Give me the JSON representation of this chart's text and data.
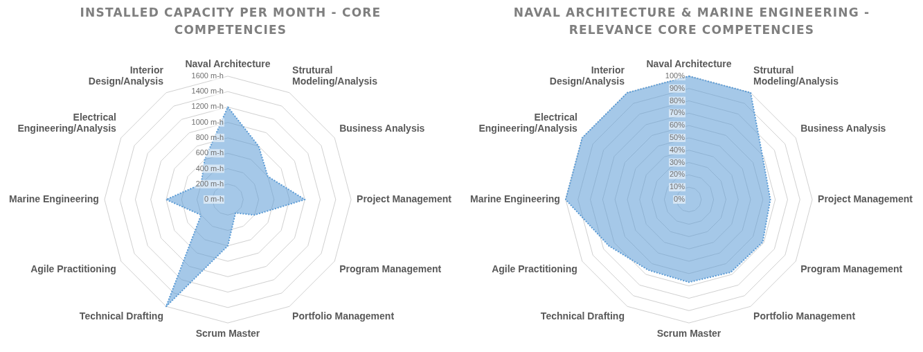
{
  "chart_data": [
    {
      "type": "radar",
      "title": "INSTALLED CAPACITY PER MONTH - CORE COMPETENCIES",
      "categories": [
        "Naval Architecture",
        "Strutural Modeling/Analysis",
        "Business Analysis",
        "Project Management",
        "Program Management",
        "Portfolio Management",
        "Scrum Master",
        "Technical Drafting",
        "Agile Practitioning",
        "Marine Engineering",
        "Electrical Engineering/Analysis",
        "Interior Design/Analysis"
      ],
      "series": [
        {
          "color": "#5b9bd5",
          "values": [
            1200,
            800,
            600,
            1000,
            400,
            200,
            600,
            1600,
            400,
            800,
            400,
            600
          ]
        }
      ],
      "ylim": [
        0,
        1600
      ],
      "yticks": [
        {
          "value": 0,
          "label": "0 m-h"
        },
        {
          "value": 200,
          "label": "200 m-h"
        },
        {
          "value": 400,
          "label": "400 m-h"
        },
        {
          "value": 600,
          "label": "600 m-h"
        },
        {
          "value": 800,
          "label": "800 m-h"
        },
        {
          "value": 1000,
          "label": "1000 m-h"
        },
        {
          "value": 1200,
          "label": "1200 m-h"
        },
        {
          "value": 1400,
          "label": "1400 m-h"
        },
        {
          "value": 1600,
          "label": "1600 m-h"
        }
      ],
      "grid": true,
      "line_style": "dotted"
    },
    {
      "type": "radar",
      "title": "NAVAL ARCHITECTURE & MARINE ENGINEERING - RELEVANCE CORE COMPETENCIES",
      "categories": [
        "Naval Architecture",
        "Strutural Modeling/Analysis",
        "Business Analysis",
        "Project Management",
        "Program Management",
        "Portfolio Management",
        "Scrum Master",
        "Technical Drafting",
        "Agile Practitioning",
        "Marine Engineering",
        "Electrical Engineering/Analysis",
        "Interior Design/Analysis"
      ],
      "series": [
        {
          "color": "#5b9bd5",
          "values": [
            100,
            100,
            69,
            66,
            69,
            68,
            67,
            66,
            75,
            100,
            100,
            100
          ]
        }
      ],
      "ylim": [
        0,
        100
      ],
      "yticks": [
        {
          "value": 0,
          "label": "0%"
        },
        {
          "value": 10,
          "label": "10%"
        },
        {
          "value": 20,
          "label": "20%"
        },
        {
          "value": 30,
          "label": "30%"
        },
        {
          "value": 40,
          "label": "40%"
        },
        {
          "value": 50,
          "label": "50%"
        },
        {
          "value": 60,
          "label": "60%"
        },
        {
          "value": 70,
          "label": "70%"
        },
        {
          "value": 80,
          "label": "80%"
        },
        {
          "value": 90,
          "label": "90%"
        },
        {
          "value": 100,
          "label": "100%"
        }
      ],
      "grid": true,
      "line_style": "dotted"
    }
  ]
}
